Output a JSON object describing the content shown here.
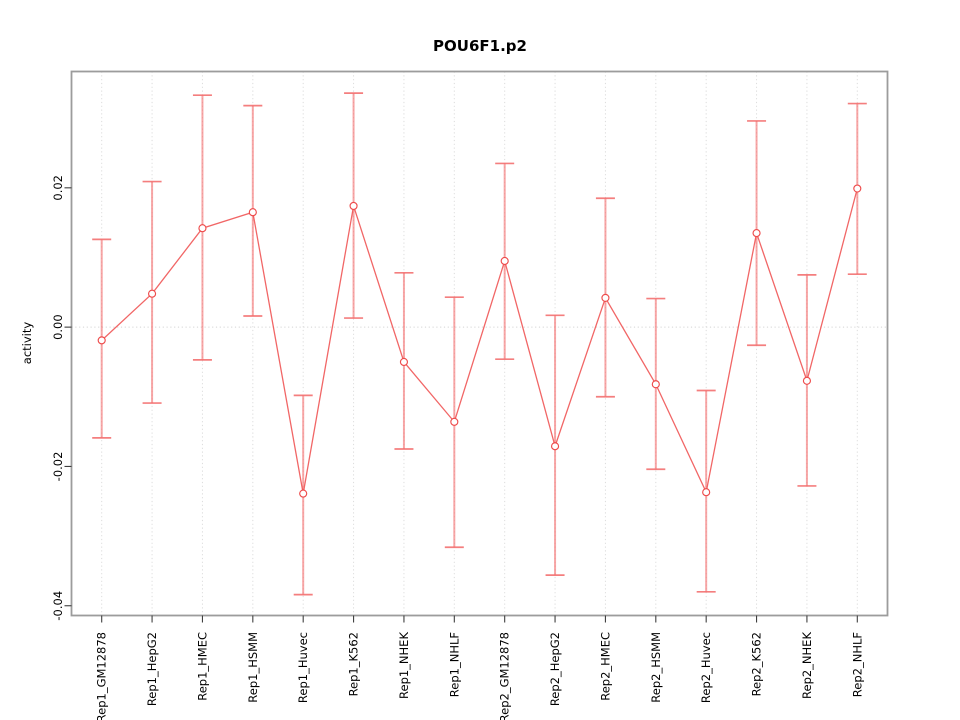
{
  "figure": {
    "title": "POU6F1.p2",
    "ylabel": "activity"
  },
  "chart_data": {
    "type": "line",
    "subtype": "points-with-error-bars",
    "title": "POU6F1.p2",
    "xlabel": "",
    "ylabel": "activity",
    "categories": [
      "Rep1_GM12878",
      "Rep1_HepG2",
      "Rep1_HMEC",
      "Rep1_HSMM",
      "Rep1_Huvec",
      "Rep1_K562",
      "Rep1_NHEK",
      "Rep1_NHLF",
      "Rep2_GM12878",
      "Rep2_HepG2",
      "Rep2_HMEC",
      "Rep2_HSMM",
      "Rep2_Huvec",
      "Rep2_K562",
      "Rep2_NHEK",
      "Rep2_NHLF"
    ],
    "series": [
      {
        "name": "activity",
        "values": [
          -0.0019,
          0.0048,
          0.0142,
          0.0165,
          -0.0239,
          0.0174,
          -0.005,
          -0.0136,
          0.0095,
          -0.0171,
          0.0042,
          -0.0082,
          -0.0237,
          0.0135,
          -0.0077,
          0.0199
        ],
        "upper": [
          0.0126,
          0.0209,
          0.0333,
          0.0318,
          -0.0098,
          0.0336,
          0.0078,
          0.0043,
          0.0235,
          0.0017,
          0.0185,
          0.0041,
          -0.0091,
          0.0296,
          0.0075,
          0.0321
        ],
        "lower": [
          -0.0159,
          -0.0109,
          -0.0047,
          0.0016,
          -0.0384,
          0.0013,
          -0.0175,
          -0.0316,
          -0.0046,
          -0.0356,
          -0.01,
          -0.0204,
          -0.038,
          -0.0026,
          -0.0228,
          0.0076
        ]
      }
    ],
    "ylim": [
      -0.0414,
      0.0367
    ],
    "ytick_values": [
      -0.04,
      -0.02,
      0.0,
      0.02
    ],
    "ytick_labels": [
      "-0.04",
      "-0.02",
      "0.00",
      "0.02"
    ],
    "grid": {
      "vertical": "dotted line at every category",
      "horizontal": "dotted line at zero only"
    },
    "legend_position": "none",
    "marker": "open-circle",
    "tick_label_rotation_deg": 90,
    "colors": {
      "accent": "#EE4B4B",
      "error_bar": "#F37070",
      "frame": "#9C9C9C",
      "grid": "#DCDCDC",
      "zero_line": "#D4D4D4",
      "tick": "#3F3F3F",
      "text": "#000000"
    }
  }
}
